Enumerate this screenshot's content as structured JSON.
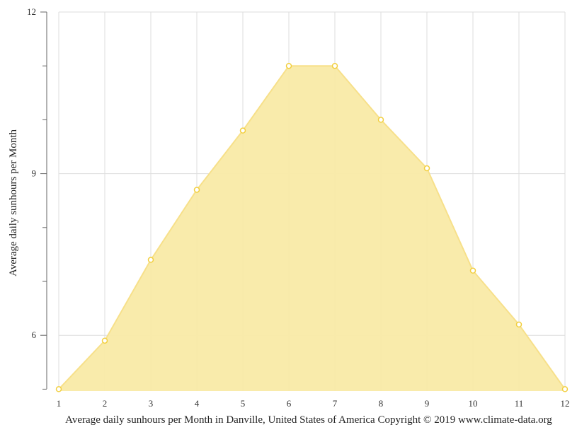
{
  "chart_data": {
    "type": "area",
    "title": "",
    "xlabel": "Average daily sunhours per Month in Danville, United States of America Copyright © 2019 www.climate-data.org",
    "ylabel": "Average daily sunhours per Month",
    "categories": [
      "1",
      "2",
      "3",
      "4",
      "5",
      "6",
      "7",
      "8",
      "9",
      "10",
      "11",
      "12"
    ],
    "series": [
      {
        "name": "Average daily sunhours",
        "values": [
          5.0,
          5.9,
          7.4,
          8.7,
          9.8,
          11.0,
          11.0,
          10.0,
          9.1,
          7.2,
          6.2,
          5.0
        ]
      }
    ],
    "ylim": [
      5,
      12
    ],
    "yticks_major": [
      "6",
      "9",
      "12"
    ],
    "yticks_minor": [
      5,
      7,
      8,
      10,
      11
    ],
    "grid": true,
    "legend": "none",
    "colors": {
      "fill": "#f9eaa6",
      "line": "#f7e08a",
      "marker_stroke": "#f2cf3f",
      "marker_fill": "#ffffff",
      "grid": "#dddddd",
      "axis": "#666666"
    }
  }
}
